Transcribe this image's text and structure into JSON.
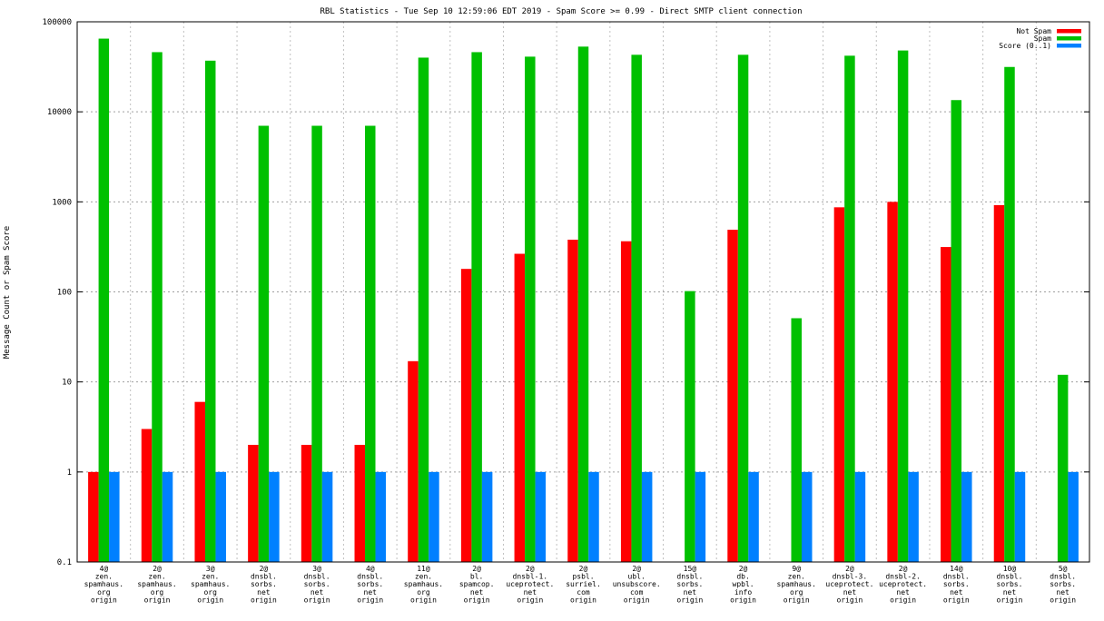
{
  "chart_data": {
    "type": "bar",
    "title": "RBL Statistics - Tue Sep 10 12:59:06 EDT 2019 - Spam Score >= 0.99 - Direct SMTP client connection",
    "xlabel": "",
    "ylabel": "Message Count or Spam Score",
    "yscale": "log",
    "ylim": [
      0.1,
      100000
    ],
    "yticks": [
      "0.1",
      "1",
      "10",
      "100",
      "1000",
      "10000",
      "100000"
    ],
    "grid": true,
    "legend_position": "top-right",
    "categories": [
      [
        "4@",
        "zen.",
        "spamhaus.",
        "org",
        "origin"
      ],
      [
        "2@",
        "zen.",
        "spamhaus.",
        "org",
        "origin"
      ],
      [
        "3@",
        "zen.",
        "spamhaus.",
        "org",
        "origin"
      ],
      [
        "2@",
        "dnsbl.",
        "sorbs.",
        "net",
        "origin"
      ],
      [
        "3@",
        "dnsbl.",
        "sorbs.",
        "net",
        "origin"
      ],
      [
        "4@",
        "dnsbl.",
        "sorbs.",
        "net",
        "origin"
      ],
      [
        "11@",
        "zen.",
        "spamhaus.",
        "org",
        "origin"
      ],
      [
        "2@",
        "bl.",
        "spamcop.",
        "net",
        "origin"
      ],
      [
        "2@",
        "dnsbl-1.",
        "uceprotect.",
        "net",
        "origin"
      ],
      [
        "2@",
        "psbl.",
        "surriel.",
        "com",
        "origin"
      ],
      [
        "2@",
        "ubl.",
        "unsubscore.",
        "com",
        "origin"
      ],
      [
        "15@",
        "dnsbl.",
        "sorbs.",
        "net",
        "origin"
      ],
      [
        "2@",
        "db.",
        "wpbl.",
        "info",
        "origin"
      ],
      [
        "9@",
        "zen.",
        "spamhaus.",
        "org",
        "origin"
      ],
      [
        "2@",
        "dnsbl-3.",
        "uceprotect.",
        "net",
        "origin"
      ],
      [
        "2@",
        "dnsbl-2.",
        "uceprotect.",
        "net",
        "origin"
      ],
      [
        "14@",
        "dnsbl.",
        "sorbs.",
        "net",
        "origin"
      ],
      [
        "10@",
        "dnsbl.",
        "sorbs.",
        "net",
        "origin"
      ],
      [
        "5@",
        "dnsbl.",
        "sorbs.",
        "net",
        "origin"
      ]
    ],
    "series": [
      {
        "name": "Not Spam",
        "color": "#ff0000",
        "values": [
          1,
          3,
          6,
          2,
          2,
          2,
          17,
          180,
          265,
          380,
          365,
          null,
          490,
          null,
          870,
          1000,
          315,
          920,
          null
        ]
      },
      {
        "name": "Spam",
        "color": "#00c000",
        "values": [
          65000,
          46000,
          37000,
          7000,
          7000,
          7000,
          40000,
          46000,
          41000,
          53000,
          43000,
          102,
          43000,
          51,
          42000,
          48000,
          13500,
          31500,
          12
        ]
      },
      {
        "name": "Score (0..1)",
        "color": "#0080ff",
        "values": [
          1,
          1,
          1,
          1,
          1,
          1,
          1,
          1,
          1,
          1,
          1,
          1,
          1,
          1,
          1,
          1,
          1,
          1,
          1
        ]
      }
    ]
  }
}
